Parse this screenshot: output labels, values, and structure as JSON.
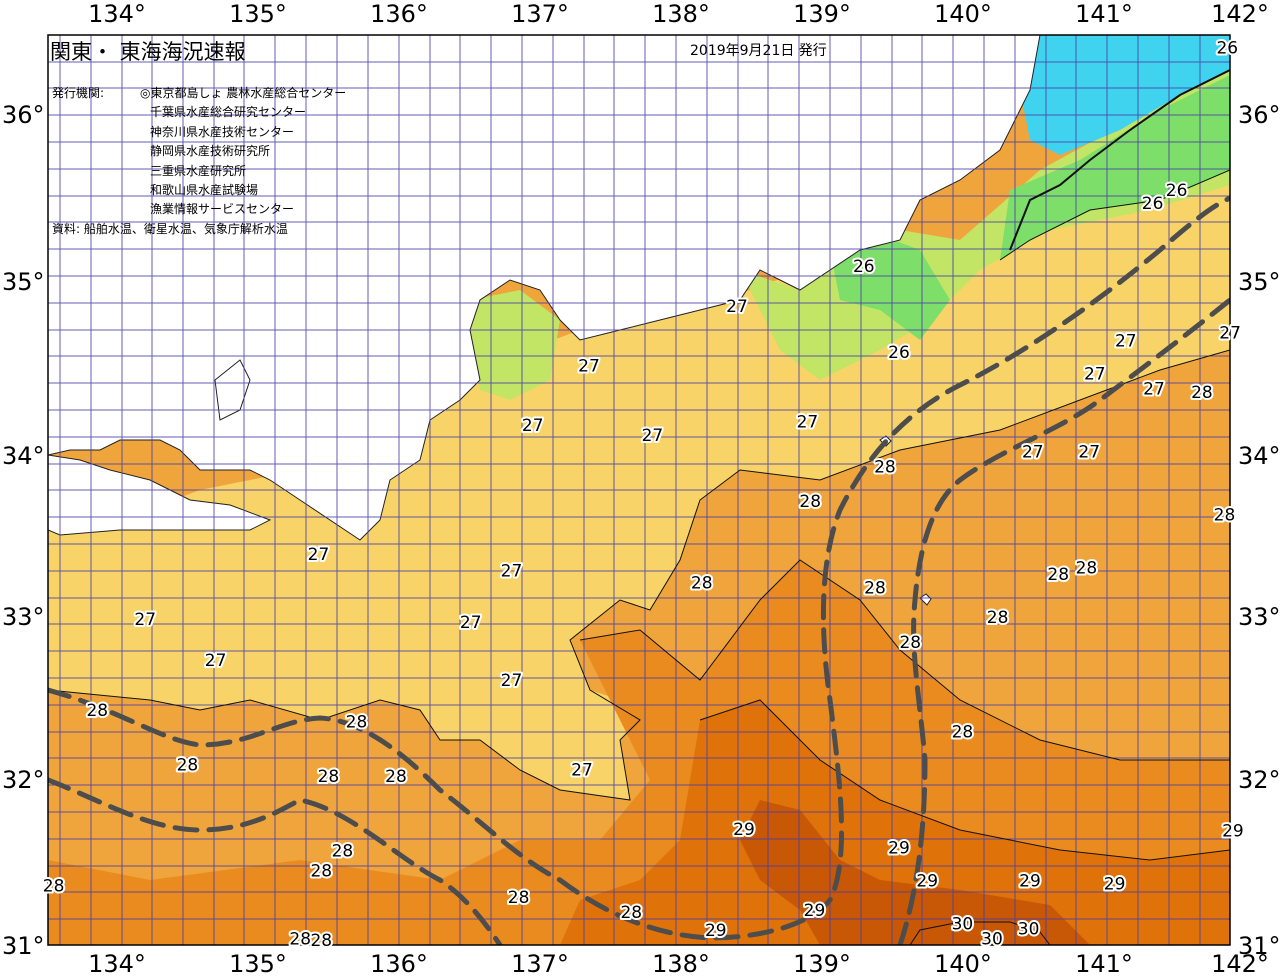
{
  "header": {
    "title": "関東・ 東海海況速報",
    "issue_date": "2019年9月21日 発行",
    "issuer_label": "発行機関:",
    "issuers": [
      "◎東京都島しょ 農林水産総合センター",
      "千葉県水産総合研究センター",
      "神奈川県水産技術センター",
      "静岡県水産技術研究所",
      "三重県水産研究所",
      "和歌山県水産試験場",
      "漁業情報サービスセンター"
    ],
    "source_note": "資料: 船舶水温、衛星水温、気象庁解析水温"
  },
  "axes": {
    "lon_labels": [
      "134°",
      "135°",
      "136°",
      "137°",
      "138°",
      "139°",
      "140°",
      "141°",
      "142°"
    ],
    "lat_labels": [
      "36°",
      "35°",
      "34°",
      "33°",
      "32°",
      "31°"
    ]
  },
  "isotherm_labels": [
    {
      "text": "26",
      "lon": 141.88,
      "lat": 36.42
    },
    {
      "text": "26",
      "lon": 141.52,
      "lat": 35.56
    },
    {
      "text": "26",
      "lon": 141.35,
      "lat": 35.48
    },
    {
      "text": "26",
      "lon": 139.3,
      "lat": 35.1
    },
    {
      "text": "26",
      "lon": 139.55,
      "lat": 34.58
    },
    {
      "text": "27",
      "lon": 138.4,
      "lat": 34.86
    },
    {
      "text": "27",
      "lon": 137.35,
      "lat": 34.5
    },
    {
      "text": "27",
      "lon": 136.95,
      "lat": 34.14
    },
    {
      "text": "27",
      "lon": 137.8,
      "lat": 34.08
    },
    {
      "text": "27",
      "lon": 138.9,
      "lat": 34.16
    },
    {
      "text": "27",
      "lon": 141.16,
      "lat": 34.65
    },
    {
      "text": "27",
      "lon": 141.9,
      "lat": 34.7
    },
    {
      "text": "27",
      "lon": 140.94,
      "lat": 34.45
    },
    {
      "text": "27",
      "lon": 141.36,
      "lat": 34.36
    },
    {
      "text": "27",
      "lon": 140.5,
      "lat": 33.98
    },
    {
      "text": "27",
      "lon": 140.9,
      "lat": 33.98
    },
    {
      "text": "27",
      "lon": 135.43,
      "lat": 33.36
    },
    {
      "text": "27",
      "lon": 136.8,
      "lat": 33.26
    },
    {
      "text": "27",
      "lon": 134.2,
      "lat": 32.97
    },
    {
      "text": "27",
      "lon": 136.51,
      "lat": 32.95
    },
    {
      "text": "27",
      "lon": 134.7,
      "lat": 32.72
    },
    {
      "text": "27",
      "lon": 136.8,
      "lat": 32.6
    },
    {
      "text": "27",
      "lon": 137.3,
      "lat": 32.06
    },
    {
      "text": "28",
      "lon": 139.45,
      "lat": 33.89
    },
    {
      "text": "28",
      "lon": 138.92,
      "lat": 33.68
    },
    {
      "text": "28",
      "lon": 138.15,
      "lat": 33.19
    },
    {
      "text": "28",
      "lon": 139.38,
      "lat": 33.16
    },
    {
      "text": "28",
      "lon": 141.86,
      "lat": 33.6
    },
    {
      "text": "28",
      "lon": 141.7,
      "lat": 34.34
    },
    {
      "text": "28",
      "lon": 140.68,
      "lat": 33.24
    },
    {
      "text": "28",
      "lon": 140.88,
      "lat": 33.28
    },
    {
      "text": "28",
      "lon": 140.25,
      "lat": 32.98
    },
    {
      "text": "28",
      "lon": 139.63,
      "lat": 32.83
    },
    {
      "text": "28",
      "lon": 140.0,
      "lat": 32.29
    },
    {
      "text": "28",
      "lon": 133.86,
      "lat": 32.42
    },
    {
      "text": "28",
      "lon": 134.5,
      "lat": 32.09
    },
    {
      "text": "28",
      "lon": 135.7,
      "lat": 32.35
    },
    {
      "text": "28",
      "lon": 135.5,
      "lat": 32.02
    },
    {
      "text": "28",
      "lon": 135.98,
      "lat": 32.02
    },
    {
      "text": "28",
      "lon": 135.6,
      "lat": 31.57
    },
    {
      "text": "28",
      "lon": 135.45,
      "lat": 31.45
    },
    {
      "text": "28",
      "lon": 133.55,
      "lat": 31.36
    },
    {
      "text": "28",
      "lon": 136.85,
      "lat": 31.29
    },
    {
      "text": "28",
      "lon": 137.65,
      "lat": 31.2
    },
    {
      "text": "28",
      "lon": 135.3,
      "lat": 31.04
    },
    {
      "text": "28",
      "lon": 135.45,
      "lat": 31.03
    },
    {
      "text": "29",
      "lon": 138.45,
      "lat": 31.7
    },
    {
      "text": "29",
      "lon": 139.55,
      "lat": 31.59
    },
    {
      "text": "29",
      "lon": 139.75,
      "lat": 31.39
    },
    {
      "text": "29",
      "lon": 140.48,
      "lat": 31.39
    },
    {
      "text": "29",
      "lon": 141.08,
      "lat": 31.37
    },
    {
      "text": "29",
      "lon": 141.92,
      "lat": 31.69
    },
    {
      "text": "29",
      "lon": 138.95,
      "lat": 31.21
    },
    {
      "text": "29",
      "lon": 138.25,
      "lat": 31.09
    },
    {
      "text": "30",
      "lon": 140.0,
      "lat": 31.13
    },
    {
      "text": "30",
      "lon": 140.47,
      "lat": 31.1
    },
    {
      "text": "30",
      "lon": 140.21,
      "lat": 31.04
    }
  ],
  "legend_colors": {
    "land": "#ffffff",
    "t25": "#3fd3f0",
    "t26": "#7ede6a",
    "t26_5": "#c3e566",
    "t27": "#f8d368",
    "t27_5": "#f4c15a",
    "t28": "#f0a53c",
    "t28_5": "#ea8b20",
    "t29": "#e0720a",
    "t30": "#c85805",
    "grid": "#4a3fa6",
    "current_axis": "#4d4d4d"
  }
}
